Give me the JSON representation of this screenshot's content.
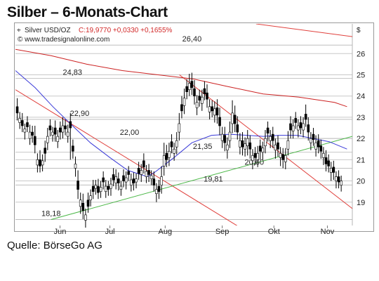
{
  "title": "Silber – 6-Monats-Chart",
  "source": "Quelle: BörseGo AG",
  "header": {
    "instrument": "Silver USD/OZ",
    "quote": "C:19,9770 +0,0330 +0,1655%",
    "website": "© www.tradesignalonline.com"
  },
  "colors": {
    "grid": "#c8c8c8",
    "candle": "#000000",
    "upper_trend": "#e0403c",
    "lower_trend": "#4cb848",
    "ma_blue": "#3a3ad8",
    "ma_red": "#cc2222",
    "quote_red": "#d22a2a"
  },
  "chart_data": {
    "type": "candlestick",
    "title": "Silber – 6-Monats-Chart",
    "currency_label": "$",
    "x_range": [
      "2010-05-13",
      "2010-11-18"
    ],
    "ylim": [
      17.9,
      27.4
    ],
    "y_ticks": [
      19,
      20,
      21,
      22,
      23,
      24,
      25,
      26
    ],
    "x_labels": [
      {
        "label": "Jun",
        "date": "2010-06-07"
      },
      {
        "label": "Jul",
        "date": "2010-07-05"
      },
      {
        "label": "Aug",
        "date": "2010-08-05"
      },
      {
        "label": "Sep",
        "date": "2010-09-06"
      },
      {
        "label": "Okt",
        "date": "2010-10-05"
      },
      {
        "label": "Nov",
        "date": "2010-11-04"
      }
    ],
    "horizontal_levels": [
      26.4,
      24.83,
      22.9,
      22.0,
      21.35,
      20.6,
      19.81,
      18.18
    ],
    "level_labels": [
      {
        "text": "26,40",
        "value": 26.4,
        "date": "2010-08-20"
      },
      {
        "text": "24,83",
        "value": 24.83,
        "date": "2010-06-14"
      },
      {
        "text": "22,90",
        "value": 22.9,
        "date": "2010-06-18"
      },
      {
        "text": "22,00",
        "value": 22.0,
        "date": "2010-07-16"
      },
      {
        "text": "21,35",
        "value": 21.35,
        "date": "2010-08-26"
      },
      {
        "text": "20,60",
        "value": 20.6,
        "date": "2010-09-24"
      },
      {
        "text": "19,81",
        "value": 19.81,
        "date": "2010-09-01"
      },
      {
        "text": "18,18",
        "value": 18.18,
        "date": "2010-06-02"
      }
    ],
    "trend_lines": [
      {
        "name": "upper",
        "color": "red",
        "points": [
          [
            "2010-05-13",
            24.3
          ],
          [
            "2010-09-20",
            17.6
          ]
        ]
      },
      {
        "name": "lower",
        "color": "red",
        "points": [
          [
            "2010-08-13",
            25.0
          ],
          [
            "2010-11-18",
            18.7
          ]
        ]
      },
      {
        "name": "support",
        "color": "green",
        "points": [
          [
            "2010-06-02",
            18.18
          ],
          [
            "2010-11-18",
            22.1
          ]
        ]
      },
      {
        "name": "top",
        "color": "red",
        "points": [
          [
            "2010-09-25",
            27.4
          ],
          [
            "2010-11-18",
            26.8
          ]
        ]
      }
    ],
    "moving_averages": [
      {
        "color": "blue",
        "points": [
          [
            "2010-05-13",
            25.2
          ],
          [
            "2010-05-24",
            24.4
          ],
          [
            "2010-06-03",
            23.5
          ],
          [
            "2010-06-14",
            22.6
          ],
          [
            "2010-06-24",
            21.8
          ],
          [
            "2010-07-05",
            21.1
          ],
          [
            "2010-07-15",
            20.5
          ],
          [
            "2010-07-26",
            20.2
          ],
          [
            "2010-07-30",
            20.4
          ],
          [
            "2010-08-10",
            21.1
          ],
          [
            "2010-08-20",
            21.8
          ],
          [
            "2010-08-31",
            22.15
          ],
          [
            "2010-09-10",
            22.2
          ],
          [
            "2010-09-20",
            22.15
          ],
          [
            "2010-09-29",
            22.1
          ],
          [
            "2010-10-08",
            22.15
          ],
          [
            "2010-10-18",
            22.15
          ],
          [
            "2010-10-27",
            22.0
          ],
          [
            "2010-11-05",
            21.85
          ],
          [
            "2010-11-15",
            21.5
          ]
        ]
      },
      {
        "color": "red",
        "points": [
          [
            "2010-05-13",
            26.2
          ],
          [
            "2010-06-02",
            25.9
          ],
          [
            "2010-06-22",
            25.5
          ],
          [
            "2010-07-12",
            25.2
          ],
          [
            "2010-08-01",
            25.0
          ],
          [
            "2010-08-21",
            24.8
          ],
          [
            "2010-09-09",
            24.45
          ],
          [
            "2010-09-29",
            24.1
          ],
          [
            "2010-10-19",
            23.95
          ],
          [
            "2010-11-08",
            23.7
          ],
          [
            "2010-11-15",
            23.5
          ]
        ]
      }
    ],
    "candles": {
      "start_date": "2010-05-14",
      "step_days": 1.42,
      "close": [
        23.2,
        22.95,
        22.6,
        22.45,
        22.55,
        22.3,
        22.15,
        21.7,
        21.0,
        20.7,
        20.95,
        21.3,
        22.1,
        22.4,
        22.3,
        22.2,
        22.1,
        22.3,
        22.6,
        22.45,
        22.3,
        22.5,
        21.4,
        20.8,
        19.6,
        19.1,
        18.6,
        18.4,
        18.8,
        19.3,
        19.5,
        19.8,
        19.45,
        19.7,
        19.95,
        19.75,
        19.6,
        19.85,
        20.05,
        20.2,
        19.9,
        19.75,
        20.0,
        20.15,
        20.3,
        20.05,
        19.9,
        20.1,
        20.35,
        20.5,
        20.65,
        20.45,
        20.3,
        20.25,
        19.8,
        19.6,
        19.5,
        20.2,
        21.2,
        21.0,
        21.4,
        21.6,
        21.5,
        21.9,
        22.7,
        23.3,
        23.9,
        24.2,
        24.6,
        24.4,
        24.0,
        23.7,
        23.8,
        23.95,
        24.1,
        23.85,
        23.5,
        23.3,
        23.4,
        23.1,
        22.6,
        22.2,
        21.8,
        21.7,
        22.3,
        23.2,
        22.7,
        22.3,
        21.9,
        21.6,
        21.75,
        22.0,
        21.5,
        21.2,
        21.1,
        21.3,
        21.4,
        21.55,
        22.0,
        22.25,
        22.1,
        21.9,
        21.7,
        21.5,
        21.3,
        21.0,
        21.2,
        21.9,
        22.4,
        22.6,
        22.75,
        22.6,
        22.5,
        22.7,
        22.9,
        22.3,
        22.0,
        21.95,
        21.8,
        21.6,
        21.4,
        21.3,
        20.8,
        20.7,
        20.6,
        20.4,
        20.2,
        19.95,
        20.0
      ],
      "open_offset": [
        0.3,
        -0.2,
        0.25,
        -0.15,
        0.2,
        -0.3,
        0.15,
        0.4,
        -0.25,
        0.3,
        -0.2,
        0.25,
        -0.3,
        0.2,
        -0.15,
        0.3,
        -0.25,
        0.2,
        -0.3,
        0.15,
        -0.2,
        0.3,
        0.25,
        -0.2,
        0.4,
        -0.3,
        0.35,
        -0.25,
        0.3,
        -0.2,
        0.25,
        -0.15,
        0.3,
        -0.2,
        0.2,
        -0.25,
        0.15,
        -0.2,
        0.25,
        -0.3,
        0.2,
        -0.15,
        0.25,
        -0.2,
        0.15,
        -0.25,
        0.2,
        -0.15,
        0.25,
        -0.2,
        0.3,
        -0.25,
        0.2,
        -0.15,
        0.3,
        -0.2,
        0.25,
        -0.4,
        -0.5,
        0.3,
        -0.3,
        0.25,
        -0.2,
        -0.3,
        -0.4,
        0.3,
        -0.35,
        0.25,
        -0.3,
        0.3,
        0.35,
        -0.25,
        0.2,
        -0.3,
        0.25,
        0.3,
        -0.25,
        0.2,
        -0.3,
        0.35,
        0.4,
        -0.3,
        0.35,
        -0.25,
        -0.4,
        -0.5,
        0.4,
        0.35,
        -0.3,
        0.3,
        -0.25,
        -0.35,
        0.3,
        -0.25,
        0.2,
        -0.3,
        0.25,
        -0.2,
        -0.35,
        0.25,
        -0.2,
        0.3,
        -0.25,
        0.3,
        -0.2,
        0.25,
        -0.3,
        -0.4,
        0.3,
        -0.25,
        0.2,
        -0.2,
        0.25,
        -0.3,
        0.25,
        0.35,
        -0.2,
        0.25,
        -0.3,
        0.3,
        0.25,
        -0.2,
        0.3,
        0.25,
        -0.2,
        0.25,
        -0.2,
        0.25,
        -0.2
      ],
      "wick_high": [
        0.4,
        0.3,
        0.35,
        0.25,
        0.3,
        0.35,
        0.3,
        0.5,
        0.3,
        0.45,
        0.3,
        0.35,
        0.4,
        0.3,
        0.25,
        0.35,
        0.3,
        0.3,
        0.4,
        0.3,
        0.35,
        0.4,
        0.3,
        0.35,
        0.5,
        0.35,
        0.45,
        0.3,
        0.35,
        0.3,
        0.3,
        0.25,
        0.35,
        0.3,
        0.3,
        0.3,
        0.25,
        0.3,
        0.3,
        0.35,
        0.3,
        0.25,
        0.3,
        0.3,
        0.25,
        0.3,
        0.3,
        0.25,
        0.3,
        0.3,
        0.35,
        0.3,
        0.3,
        0.25,
        0.35,
        0.3,
        0.3,
        0.5,
        0.6,
        0.4,
        0.4,
        0.35,
        0.3,
        0.4,
        0.5,
        0.4,
        0.45,
        0.35,
        0.45,
        0.4,
        0.4,
        0.35,
        0.3,
        0.35,
        0.35,
        0.4,
        0.35,
        0.3,
        0.35,
        0.4,
        0.45,
        0.35,
        0.4,
        0.35,
        0.5,
        0.6,
        0.45,
        0.4,
        0.35,
        0.4,
        0.3,
        0.4,
        0.35,
        0.3,
        0.3,
        0.35,
        0.3,
        0.3,
        0.4,
        0.3,
        0.3,
        0.35,
        0.3,
        0.35,
        0.3,
        0.3,
        0.35,
        0.45,
        0.35,
        0.3,
        0.3,
        0.3,
        0.3,
        0.3,
        0.45,
        0.35,
        0.3,
        0.3,
        0.35,
        0.3,
        0.3,
        0.3,
        0.35,
        0.3,
        0.3,
        0.3,
        0.25,
        0.3,
        0.25
      ],
      "wick_low": [
        0.35,
        0.3,
        0.3,
        0.35,
        0.25,
        0.3,
        0.35,
        0.4,
        0.35,
        0.3,
        0.3,
        0.4,
        0.35,
        0.3,
        0.3,
        0.35,
        0.3,
        0.35,
        0.3,
        0.3,
        0.3,
        1.5,
        0.35,
        0.4,
        0.45,
        0.35,
        0.4,
        0.35,
        0.3,
        0.3,
        0.35,
        0.3,
        0.3,
        0.3,
        0.35,
        0.3,
        0.3,
        0.35,
        0.3,
        0.3,
        0.35,
        0.3,
        0.3,
        0.35,
        0.3,
        0.3,
        0.35,
        0.3,
        0.3,
        0.35,
        0.3,
        0.3,
        0.35,
        0.3,
        0.3,
        0.4,
        0.35,
        0.4,
        0.45,
        0.35,
        0.4,
        0.3,
        0.35,
        0.35,
        0.4,
        0.35,
        0.4,
        0.35,
        0.3,
        0.35,
        0.4,
        0.35,
        0.3,
        0.35,
        0.3,
        0.4,
        0.35,
        0.3,
        0.35,
        0.4,
        0.45,
        0.35,
        0.4,
        0.4,
        0.35,
        0.45,
        0.4,
        0.35,
        0.35,
        0.4,
        0.35,
        0.45,
        0.45,
        0.4,
        0.35,
        0.35,
        0.4,
        0.35,
        0.35,
        0.4,
        0.35,
        0.35,
        0.4,
        0.35,
        0.4,
        0.4,
        0.35,
        0.3,
        0.4,
        0.35,
        0.3,
        0.35,
        0.3,
        0.35,
        0.35,
        0.4,
        0.35,
        0.3,
        0.35,
        0.3,
        0.35,
        0.35,
        0.35,
        0.3,
        0.4,
        0.35,
        0.35,
        0.3,
        0.3
      ]
    }
  }
}
